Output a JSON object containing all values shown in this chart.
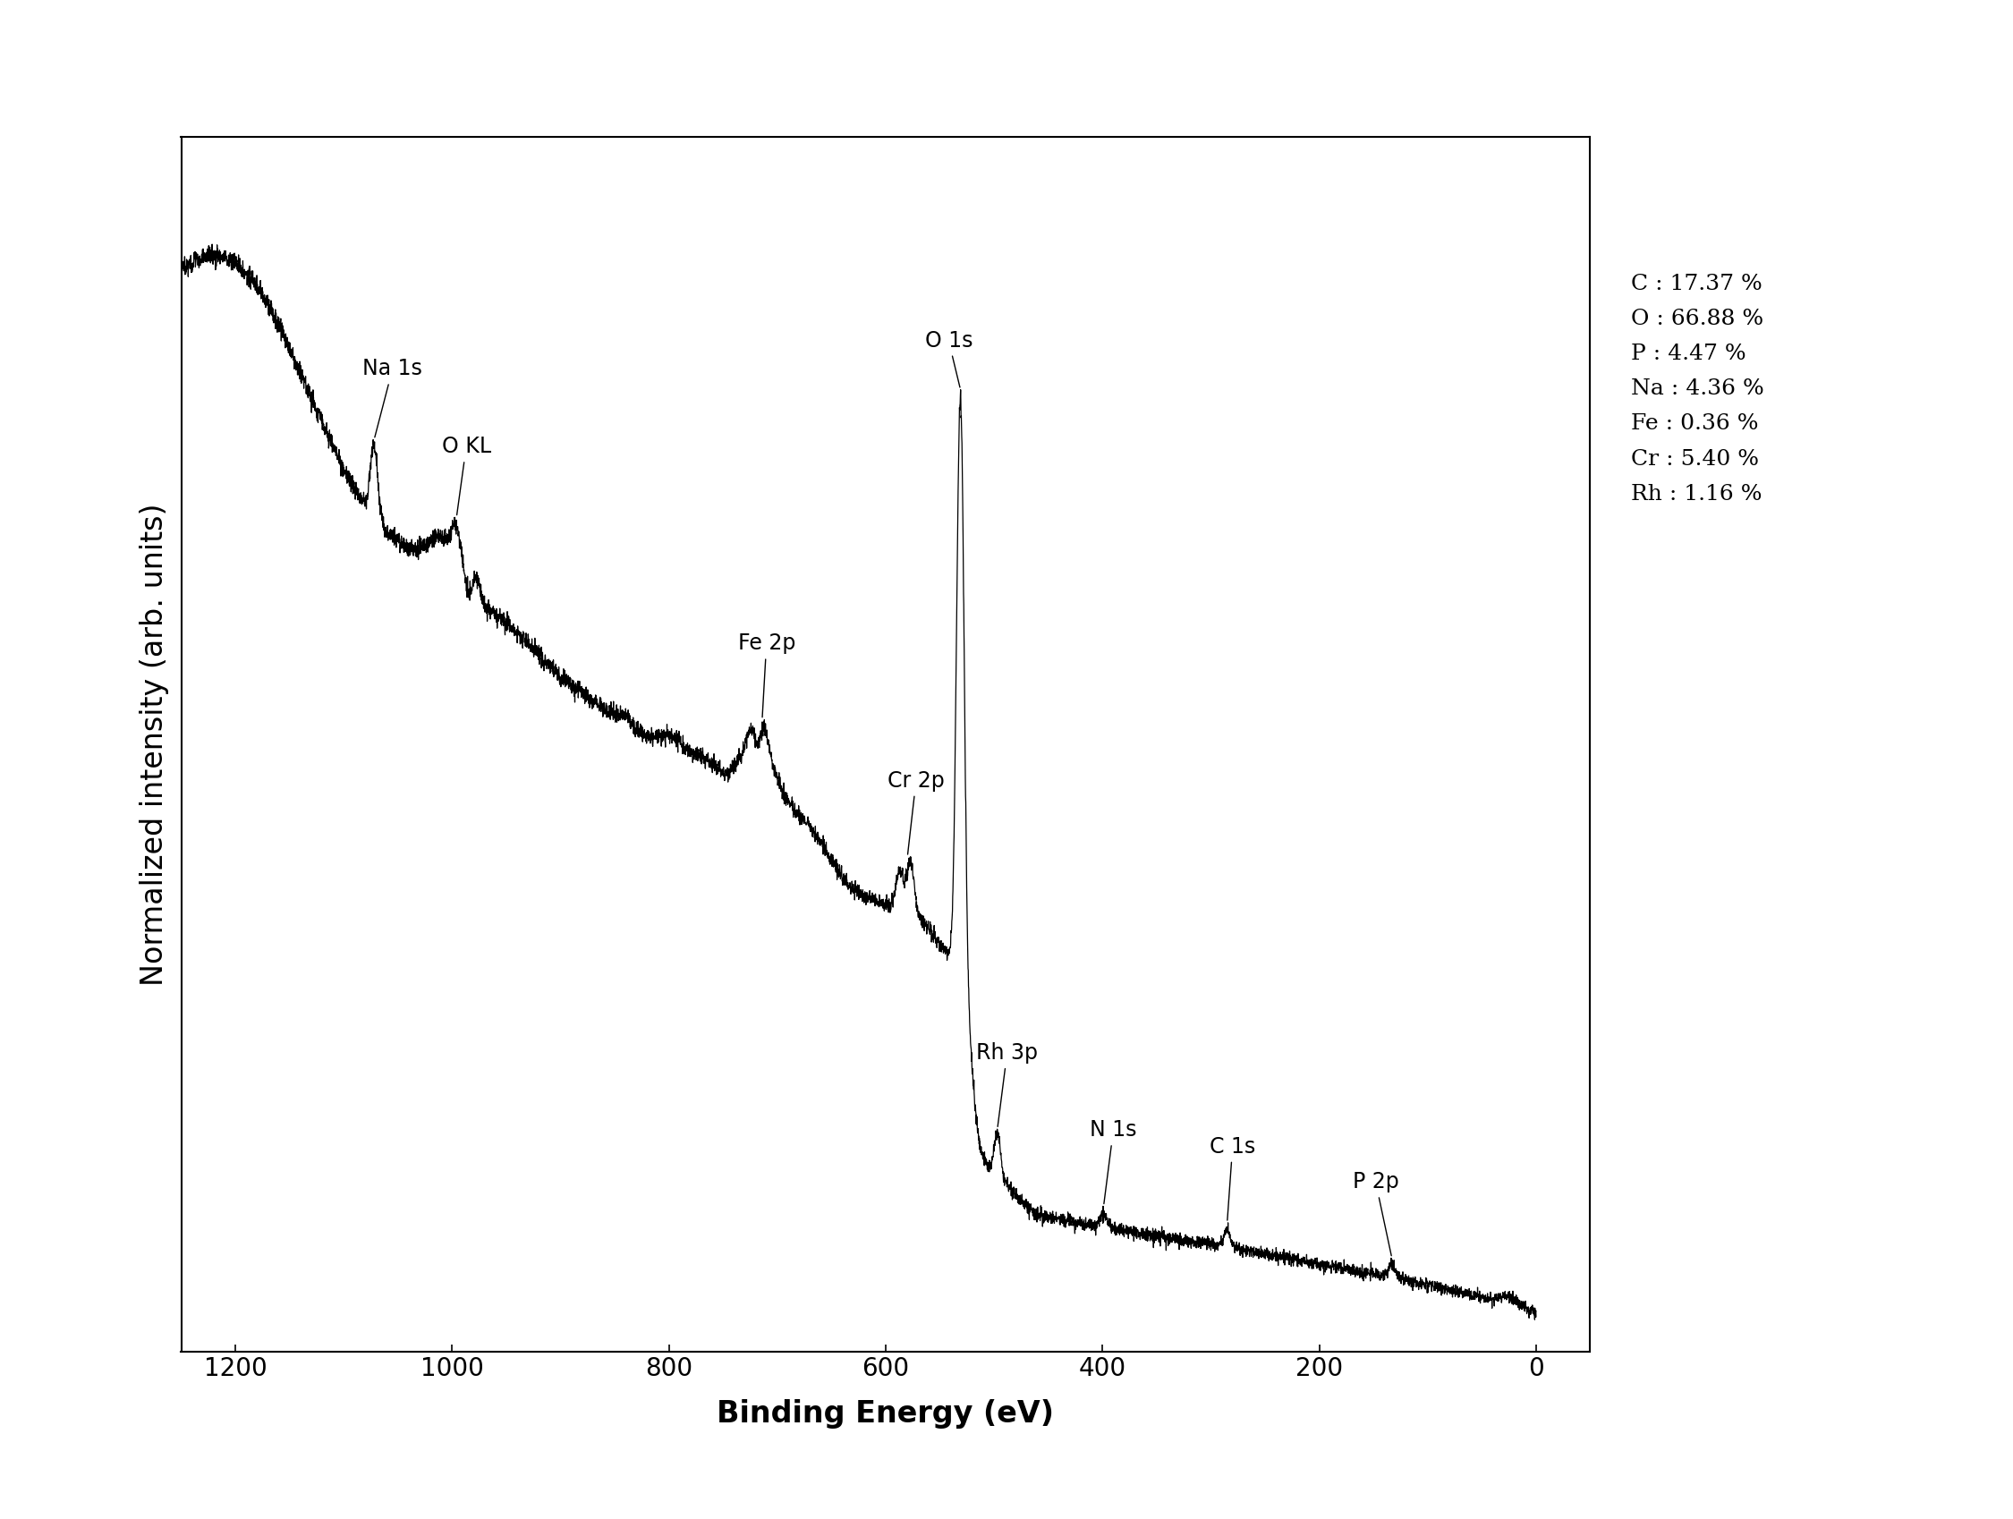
{
  "xlabel": "Binding Energy (eV)",
  "ylabel": "Normalized intensity (arb. units)",
  "xlim_left": 1250,
  "xlim_right": -50,
  "xticks": [
    1200,
    1000,
    800,
    600,
    400,
    200,
    0
  ],
  "background_color": "#ffffff",
  "line_color": "#000000",
  "composition_text": [
    "C : 17.37 %",
    "O : 66.88 %",
    "P : 4.47 %",
    "Na : 4.36 %",
    "Fe : 0.36 %",
    "Cr : 5.40 %",
    "Rh : 1.16 %"
  ],
  "fontsize_label": 24,
  "fontsize_tick": 20,
  "fontsize_annot": 17,
  "fontsize_comp": 18
}
